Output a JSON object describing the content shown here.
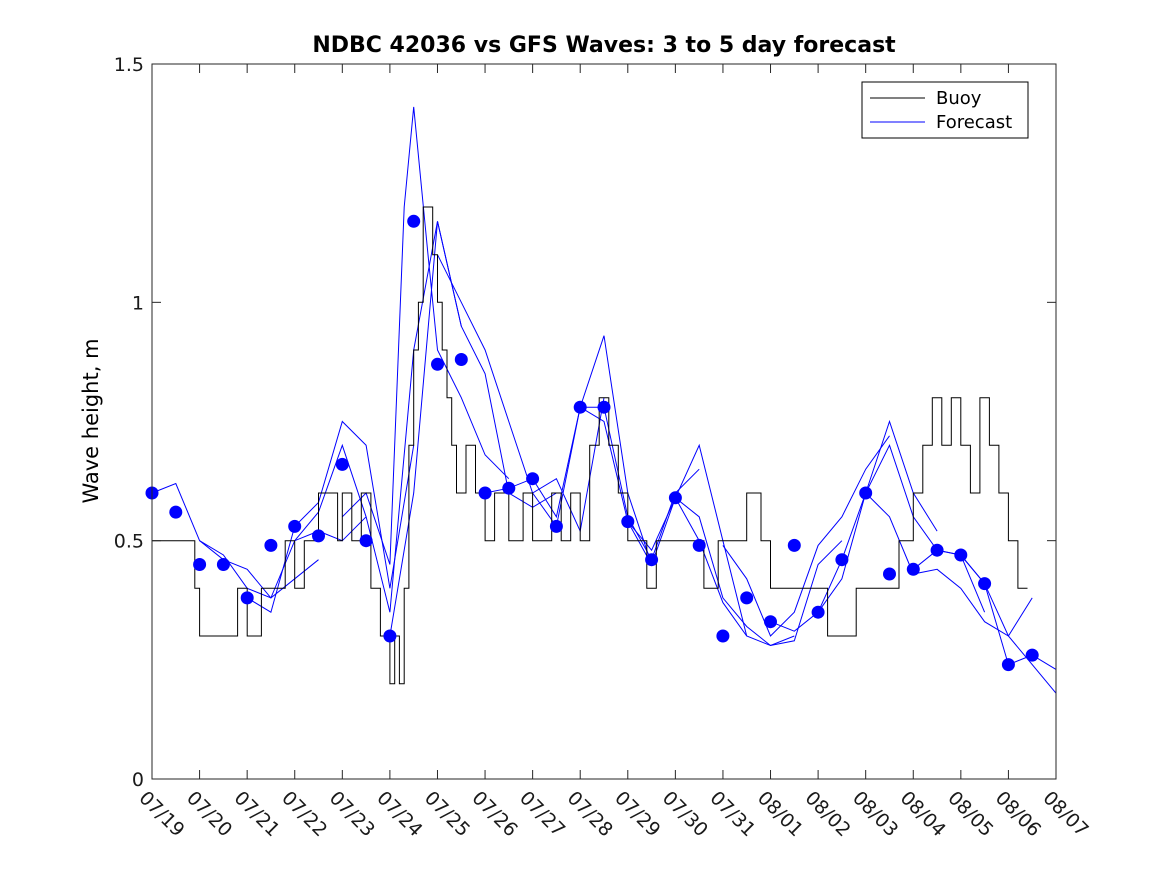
{
  "chart_data": {
    "type": "line",
    "title": "NDBC 42036 vs GFS Waves: 3 to 5 day forecast",
    "ylabel": "Wave height, m",
    "xlabel": "",
    "xlim": [
      0,
      19
    ],
    "ylim": [
      0,
      1.5
    ],
    "x_ticks": [
      {
        "value": 0,
        "label": "07/19"
      },
      {
        "value": 1,
        "label": "07/20"
      },
      {
        "value": 2,
        "label": "07/21"
      },
      {
        "value": 3,
        "label": "07/22"
      },
      {
        "value": 4,
        "label": "07/23"
      },
      {
        "value": 5,
        "label": "07/24"
      },
      {
        "value": 6,
        "label": "07/25"
      },
      {
        "value": 7,
        "label": "07/26"
      },
      {
        "value": 8,
        "label": "07/27"
      },
      {
        "value": 9,
        "label": "07/28"
      },
      {
        "value": 10,
        "label": "07/29"
      },
      {
        "value": 11,
        "label": "07/30"
      },
      {
        "value": 12,
        "label": "07/31"
      },
      {
        "value": 13,
        "label": "08/01"
      },
      {
        "value": 14,
        "label": "08/02"
      },
      {
        "value": 15,
        "label": "08/03"
      },
      {
        "value": 16,
        "label": "08/04"
      },
      {
        "value": 17,
        "label": "08/05"
      },
      {
        "value": 18,
        "label": "08/06"
      },
      {
        "value": 19,
        "label": "08/07"
      }
    ],
    "y_ticks": [
      {
        "value": 0,
        "label": "0"
      },
      {
        "value": 0.5,
        "label": "0.5"
      },
      {
        "value": 1,
        "label": "1"
      },
      {
        "value": 1.5,
        "label": "1.5"
      }
    ],
    "grid": false,
    "legend": {
      "position": "top-right",
      "entries": [
        {
          "label": "Buoy",
          "color": "#000000"
        },
        {
          "label": "Forecast",
          "color": "#0000ff"
        }
      ]
    },
    "colors": {
      "buoy": "#000000",
      "forecast": "#0000ff",
      "markers": "#0000ff"
    },
    "buoy_series": {
      "name": "Buoy",
      "x": [
        0,
        0.3,
        0.5,
        0.9,
        1.0,
        1.3,
        1.5,
        1.8,
        2.0,
        2.3,
        2.5,
        2.8,
        3.0,
        3.2,
        3.5,
        3.7,
        3.9,
        4.0,
        4.2,
        4.4,
        4.6,
        4.8,
        4.9,
        5.0,
        5.1,
        5.2,
        5.3,
        5.4,
        5.5,
        5.6,
        5.7,
        5.8,
        5.9,
        6.0,
        6.1,
        6.2,
        6.3,
        6.4,
        6.6,
        6.8,
        7.0,
        7.2,
        7.5,
        7.8,
        8.0,
        8.2,
        8.4,
        8.6,
        8.8,
        9.0,
        9.2,
        9.4,
        9.6,
        9.8,
        10.0,
        10.2,
        10.4,
        10.6,
        10.8,
        11.0,
        11.3,
        11.6,
        11.9,
        12.2,
        12.5,
        12.8,
        13.0,
        13.3,
        13.6,
        13.9,
        14.2,
        14.5,
        14.8,
        15.1,
        15.4,
        15.7,
        16.0,
        16.2,
        16.4,
        16.6,
        16.8,
        17.0,
        17.2,
        17.4,
        17.6,
        17.8,
        18.0,
        18.2,
        18.4
      ],
      "values": [
        0.5,
        0.5,
        0.5,
        0.4,
        0.3,
        0.3,
        0.3,
        0.4,
        0.3,
        0.4,
        0.4,
        0.5,
        0.4,
        0.5,
        0.6,
        0.6,
        0.5,
        0.6,
        0.5,
        0.6,
        0.4,
        0.3,
        0.3,
        0.2,
        0.3,
        0.2,
        0.4,
        0.7,
        0.9,
        1.0,
        1.2,
        1.2,
        1.1,
        1.0,
        0.9,
        0.8,
        0.7,
        0.6,
        0.7,
        0.6,
        0.5,
        0.6,
        0.5,
        0.6,
        0.5,
        0.5,
        0.6,
        0.5,
        0.6,
        0.5,
        0.7,
        0.8,
        0.7,
        0.6,
        0.5,
        0.5,
        0.4,
        0.5,
        0.5,
        0.5,
        0.5,
        0.4,
        0.5,
        0.5,
        0.6,
        0.5,
        0.4,
        0.4,
        0.4,
        0.4,
        0.3,
        0.3,
        0.4,
        0.4,
        0.4,
        0.5,
        0.6,
        0.7,
        0.8,
        0.7,
        0.8,
        0.7,
        0.6,
        0.8,
        0.7,
        0.6,
        0.5,
        0.4,
        0.4
      ]
    },
    "forecast_series": [
      {
        "x": [
          0,
          0.5,
          1.0,
          1.5,
          2.0,
          2.5,
          3.0,
          3.5
        ],
        "values": [
          0.6,
          0.62,
          0.5,
          0.46,
          0.44,
          0.38,
          0.42,
          0.46
        ]
      },
      {
        "x": [
          1.0,
          1.5,
          2.0,
          2.5,
          3.0,
          3.5,
          4.0,
          4.5
        ],
        "values": [
          0.5,
          0.47,
          0.4,
          0.38,
          0.5,
          0.52,
          0.5,
          0.55
        ]
      },
      {
        "x": [
          2.0,
          2.5,
          3.0,
          3.5,
          4.0,
          4.5,
          5.0,
          5.5
        ],
        "values": [
          0.38,
          0.35,
          0.53,
          0.58,
          0.75,
          0.7,
          0.4,
          0.7
        ]
      },
      {
        "x": [
          3.0,
          3.5,
          4.0,
          4.5,
          5.0,
          5.5,
          6.0,
          6.5
        ],
        "values": [
          0.5,
          0.56,
          0.7,
          0.55,
          0.35,
          0.9,
          1.17,
          0.95
        ]
      },
      {
        "x": [
          4.0,
          4.5,
          5.0,
          5.3,
          5.5,
          5.8,
          6.0,
          6.5,
          7.0,
          7.5
        ],
        "values": [
          0.55,
          0.6,
          0.45,
          1.2,
          1.41,
          1.1,
          0.9,
          0.8,
          0.68,
          0.63
        ]
      },
      {
        "x": [
          5.0,
          5.5,
          6.0,
          6.5,
          7.0,
          7.5,
          8.0,
          8.5
        ],
        "values": [
          0.3,
          0.6,
          1.17,
          0.95,
          0.85,
          0.6,
          0.57,
          0.6
        ]
      },
      {
        "x": [
          6.0,
          6.5,
          7.0,
          7.5,
          8.0,
          8.5,
          9.0,
          9.5
        ],
        "values": [
          1.1,
          1.0,
          0.9,
          0.75,
          0.6,
          0.63,
          0.52,
          0.8
        ]
      },
      {
        "x": [
          7.0,
          7.5,
          8.0,
          8.5,
          9.0,
          9.5,
          10.0,
          10.5
        ],
        "values": [
          0.6,
          0.61,
          0.63,
          0.55,
          0.78,
          0.93,
          0.6,
          0.45
        ]
      },
      {
        "x": [
          8.0,
          8.5,
          9.0,
          9.5,
          10.0,
          10.5,
          11.0,
          11.5
        ],
        "values": [
          0.6,
          0.53,
          0.78,
          0.78,
          0.55,
          0.46,
          0.6,
          0.65
        ]
      },
      {
        "x": [
          9.0,
          9.5,
          10.0,
          10.5,
          11.0,
          11.5,
          12.0,
          12.5
        ],
        "values": [
          0.78,
          0.75,
          0.54,
          0.45,
          0.59,
          0.7,
          0.5,
          0.3
        ]
      },
      {
        "x": [
          10.0,
          10.5,
          11.0,
          11.5,
          12.0,
          12.5,
          13.0,
          13.5
        ],
        "values": [
          0.54,
          0.48,
          0.59,
          0.5,
          0.37,
          0.3,
          0.28,
          0.3
        ]
      },
      {
        "x": [
          11.0,
          11.5,
          12.0,
          12.5,
          13.0,
          13.5,
          14.0,
          14.5
        ],
        "values": [
          0.59,
          0.55,
          0.38,
          0.32,
          0.28,
          0.29,
          0.45,
          0.5
        ]
      },
      {
        "x": [
          12.0,
          12.5,
          13.0,
          13.5,
          14.0,
          14.5,
          15.0,
          15.5
        ],
        "values": [
          0.49,
          0.42,
          0.3,
          0.35,
          0.49,
          0.55,
          0.65,
          0.72
        ]
      },
      {
        "x": [
          13.0,
          13.5,
          14.0,
          14.5,
          15.0,
          15.5,
          16.0,
          16.5
        ],
        "values": [
          0.33,
          0.31,
          0.35,
          0.46,
          0.6,
          0.75,
          0.6,
          0.52
        ]
      },
      {
        "x": [
          14.0,
          14.5,
          15.0,
          15.5,
          16.0,
          16.5,
          17.0,
          17.5
        ],
        "values": [
          0.35,
          0.42,
          0.6,
          0.7,
          0.55,
          0.48,
          0.47,
          0.35
        ]
      },
      {
        "x": [
          15.0,
          15.5,
          16.0,
          16.5,
          17.0,
          17.5,
          18.0,
          18.5
        ],
        "values": [
          0.6,
          0.55,
          0.43,
          0.44,
          0.4,
          0.33,
          0.3,
          0.38
        ]
      },
      {
        "x": [
          16.0,
          16.5,
          17.0,
          17.5,
          18.0,
          18.5,
          19.0
        ],
        "values": [
          0.44,
          0.48,
          0.47,
          0.41,
          0.3,
          0.24,
          0.18
        ]
      },
      {
        "x": [
          17.0,
          17.5,
          18.0,
          18.5,
          19.0
        ],
        "values": [
          0.47,
          0.41,
          0.24,
          0.26,
          0.23
        ]
      }
    ],
    "forecast_markers": {
      "x": [
        0,
        0.5,
        1.0,
        1.5,
        2.0,
        2.5,
        3.0,
        3.5,
        4.0,
        4.5,
        5.0,
        5.5,
        6.0,
        6.5,
        7.0,
        7.5,
        8.0,
        8.5,
        9.0,
        9.5,
        10.0,
        10.5,
        11.0,
        11.5,
        12.0,
        12.5,
        13.0,
        13.5,
        14.0,
        14.5,
        15.0,
        15.5,
        16.0,
        16.5,
        17.0,
        17.5,
        18.0,
        18.5
      ],
      "values": [
        0.6,
        0.56,
        0.45,
        0.45,
        0.38,
        0.49,
        0.53,
        0.51,
        0.66,
        0.5,
        0.3,
        1.17,
        0.87,
        0.88,
        0.6,
        0.61,
        0.63,
        0.53,
        0.78,
        0.78,
        0.54,
        0.46,
        0.59,
        0.49,
        0.3,
        0.38,
        0.33,
        0.49,
        0.35,
        0.46,
        0.6,
        0.43,
        0.44,
        0.48,
        0.47,
        0.41,
        0.24,
        0.26
      ]
    }
  }
}
